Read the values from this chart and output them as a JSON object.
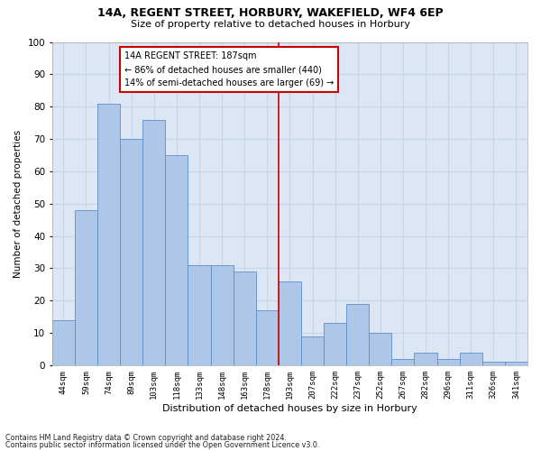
{
  "title1": "14A, REGENT STREET, HORBURY, WAKEFIELD, WF4 6EP",
  "title2": "Size of property relative to detached houses in Horbury",
  "xlabel": "Distribution of detached houses by size in Horbury",
  "ylabel": "Number of detached properties",
  "categories": [
    "44sqm",
    "59sqm",
    "74sqm",
    "89sqm",
    "103sqm",
    "118sqm",
    "133sqm",
    "148sqm",
    "163sqm",
    "178sqm",
    "193sqm",
    "207sqm",
    "222sqm",
    "237sqm",
    "252sqm",
    "267sqm",
    "282sqm",
    "296sqm",
    "311sqm",
    "326sqm",
    "341sqm"
  ],
  "values": [
    14,
    48,
    81,
    70,
    76,
    65,
    31,
    31,
    29,
    17,
    26,
    9,
    13,
    19,
    10,
    2,
    4,
    2,
    4,
    1,
    1
  ],
  "bar_color": "#aec6e8",
  "bar_edge_color": "#5b8fc7",
  "vline_index": 10,
  "vline_color": "#cc0000",
  "annotation_line1": "14A REGENT STREET: 187sqm",
  "annotation_line2": "← 86% of detached houses are smaller (440)",
  "annotation_line3": "14% of semi-detached houses are larger (69) →",
  "annotation_box_color": "#ffffff",
  "annotation_box_edge_color": "#cc0000",
  "ylim": [
    0,
    100
  ],
  "yticks": [
    0,
    10,
    20,
    30,
    40,
    50,
    60,
    70,
    80,
    90,
    100
  ],
  "grid_color": "#c8d4e8",
  "background_color": "#dce6f5",
  "footer1": "Contains HM Land Registry data © Crown copyright and database right 2024.",
  "footer2": "Contains public sector information licensed under the Open Government Licence v3.0."
}
